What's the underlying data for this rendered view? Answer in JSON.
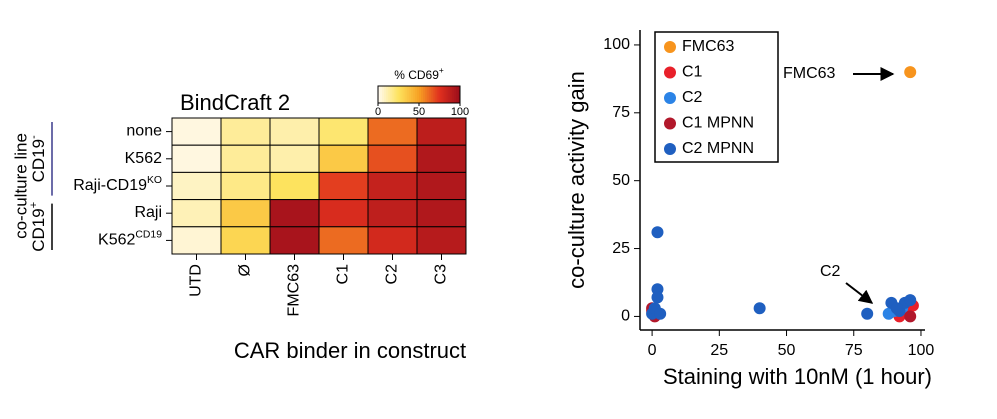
{
  "chart_data": [
    {
      "type": "heatmap",
      "title": "BindCraft 2",
      "x_label": "CAR binder in construct",
      "y_label": "co-culture line",
      "columns": [
        "UTD",
        "Ø",
        "FMC63",
        "C1",
        "C2",
        "C3"
      ],
      "rows": [
        {
          "label": "none",
          "color": "#3b3a8c"
        },
        {
          "label": "K562",
          "color": "#3b3a8c"
        },
        {
          "label": "Raji-CD19",
          "sup": "KO",
          "color": "#3b3a8c"
        },
        {
          "label": "Raji",
          "color": "#000000"
        },
        {
          "label": "K562",
          "sup": "CD19",
          "color": "#000000"
        }
      ],
      "groups": [
        {
          "label": "CD19",
          "sup": "-",
          "color": "#3b3a8c",
          "rows": [
            0,
            2
          ]
        },
        {
          "label": "CD19",
          "sup": "+",
          "color": "#000000",
          "rows": [
            3,
            4
          ]
        }
      ],
      "values": [
        [
          3,
          15,
          12,
          22,
          62,
          88
        ],
        [
          3,
          15,
          12,
          35,
          68,
          92
        ],
        [
          8,
          18,
          25,
          72,
          85,
          92
        ],
        [
          10,
          35,
          95,
          78,
          87,
          92
        ],
        [
          5,
          30,
          95,
          62,
          80,
          90
        ]
      ],
      "clim": [
        0,
        100
      ],
      "cticks": [
        0,
        50,
        100
      ],
      "colorscale": [
        "#fffaf2",
        "#fde35e",
        "#f7a123",
        "#e0301e",
        "#9a0d1b"
      ],
      "colorbar_label": "% CD69",
      "colorbar_label_sup": "+"
    },
    {
      "type": "scatter",
      "x_label": "Staining with 10nM (1 hour)",
      "y_label": "co-culture activity gain",
      "xlim": [
        -4.5,
        101.5
      ],
      "ylim": [
        -5,
        105.5
      ],
      "xticks": [
        0,
        25,
        50,
        75,
        100
      ],
      "yticks": [
        0,
        25,
        50,
        75,
        100
      ],
      "legend": "top-left",
      "annotations": [
        "FMC63",
        "C2"
      ],
      "series": [
        {
          "name": "FMC63",
          "color": "#f7941d",
          "x": [
            96
          ],
          "y": [
            90
          ]
        },
        {
          "name": "C1",
          "color": "#e8202a",
          "x": [
            0,
            1,
            95,
            97,
            92
          ],
          "y": [
            2,
            1,
            2,
            4,
            0
          ]
        },
        {
          "name": "C2",
          "color": "#2b83e6",
          "x": [
            88,
            90,
            93
          ],
          "y": [
            1,
            2,
            3
          ]
        },
        {
          "name": "C1 MPNN",
          "color": "#b2182b",
          "x": [
            0,
            1,
            96
          ],
          "y": [
            3,
            0,
            0
          ]
        },
        {
          "name": "C2 MPNN",
          "color": "#1f5fc0",
          "x": [
            2,
            2,
            2,
            0,
            1,
            3,
            40,
            80,
            89,
            92,
            94,
            96,
            91
          ],
          "y": [
            31,
            10,
            7,
            1,
            3,
            1,
            3,
            1,
            5,
            2,
            5,
            6,
            3
          ]
        }
      ]
    }
  ]
}
